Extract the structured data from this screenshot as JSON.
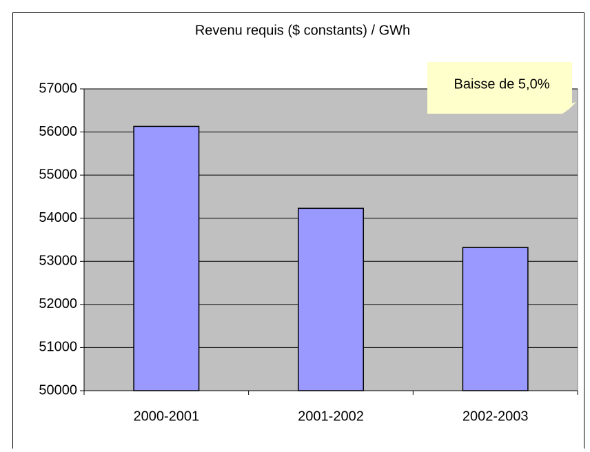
{
  "chart_data": {
    "type": "bar",
    "title": "Revenu requis ($ constants) / GWh",
    "categories": [
      "2000-2001",
      "2001-2002",
      "2002-2003"
    ],
    "values": [
      56130,
      54230,
      53320
    ],
    "color": "#9999ff",
    "ylim": [
      50000,
      57000
    ],
    "yticks": [
      50000,
      51000,
      52000,
      53000,
      54000,
      55000,
      56000,
      57000
    ],
    "grid": true,
    "annotation": "Baisse de 5,0%"
  }
}
